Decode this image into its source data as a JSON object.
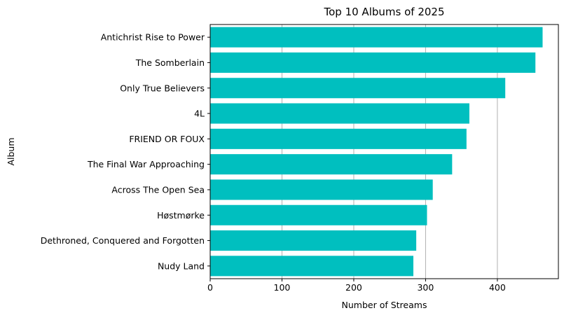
{
  "chart_data": {
    "type": "bar",
    "orientation": "horizontal",
    "title": "Top 10 Albums of 2025",
    "xlabel": "Number of Streams",
    "ylabel": "Album",
    "categories": [
      "Antichrist Rise to Power",
      "The Somberlain",
      "Only True Believers",
      "4L",
      "FRIEND OR FOUX",
      "The Final War Approaching",
      "Across The Open Sea",
      "Høstmørke",
      "Dethroned, Conquered and Forgotten",
      "Nudy Land"
    ],
    "values": [
      463,
      453,
      411,
      361,
      357,
      337,
      310,
      302,
      287,
      283
    ],
    "xlim": [
      0,
      485
    ],
    "xticks": [
      0,
      100,
      200,
      300,
      400
    ],
    "grid": "x",
    "bar_color": "#00bfbf",
    "grid_color": "#b0b0b0"
  }
}
